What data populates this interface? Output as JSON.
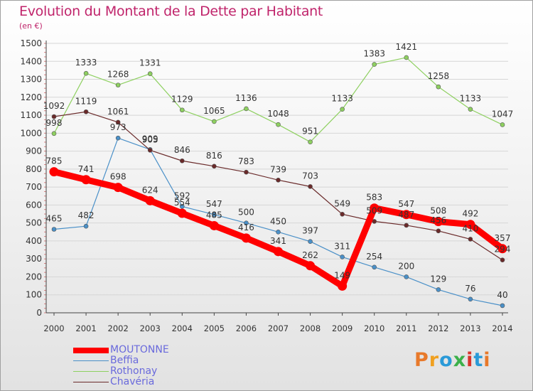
{
  "header": {
    "title": "Evolution du Montant de la Dette par Habitant",
    "subtitle": "(en €)"
  },
  "logo": {
    "text": "Proxiti",
    "colors": [
      "#e8792a",
      "#f0a020",
      "#2a9ad8",
      "#3cb04a",
      "#d8342c",
      "#2a9ad8",
      "#e8792a"
    ]
  },
  "chart_data": {
    "type": "line",
    "x": [
      "2000",
      "2001",
      "2002",
      "2003",
      "2004",
      "2005",
      "2006",
      "2007",
      "2008",
      "2009",
      "2010",
      "2011",
      "2012",
      "2013",
      "2014"
    ],
    "ylim": [
      0,
      1500
    ],
    "yticks": [
      0,
      100,
      200,
      300,
      400,
      500,
      600,
      700,
      800,
      900,
      1000,
      1100,
      1200,
      1300,
      1400,
      1500
    ],
    "grid": "horizontal",
    "legend_position": "bottom-left",
    "series": [
      {
        "name": "MOUTONNE",
        "color": "#ff0000",
        "values": [
          785,
          741,
          698,
          624,
          554,
          485,
          416,
          341,
          262,
          149,
          583,
          547,
          508,
          492,
          357
        ]
      },
      {
        "name": "Beffia",
        "color": "#4a90c8",
        "values": [
          465,
          482,
          973,
          909,
          592,
          547,
          500,
          450,
          397,
          311,
          254,
          200,
          129,
          76,
          40
        ]
      },
      {
        "name": "Rothonay",
        "color": "#8ed060",
        "values": [
          998,
          1333,
          1268,
          1331,
          1129,
          1065,
          1136,
          1048,
          951,
          1133,
          1383,
          1421,
          1258,
          1133,
          1047
        ]
      },
      {
        "name": "Chavéria",
        "color": "#6a2a2a",
        "values": [
          1092,
          1119,
          1061,
          905,
          846,
          816,
          783,
          739,
          703,
          549,
          509,
          487,
          456,
          410,
          294
        ]
      }
    ]
  }
}
